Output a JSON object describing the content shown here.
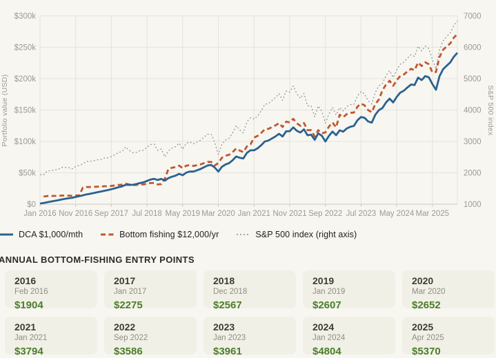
{
  "chart_data": {
    "type": "line",
    "title": "",
    "y_left": {
      "title": "Portfolio value (USD)",
      "min": 0,
      "max": 300000,
      "step": 50000,
      "tick_labels": [
        "$0",
        "$50k",
        "$100k",
        "$150k",
        "$200k",
        "$250k",
        "$300k"
      ]
    },
    "y_right": {
      "title": "S&P 500 index",
      "min": 1000,
      "max": 7000,
      "step": 1000,
      "tick_labels": [
        "1000",
        "2000",
        "3000",
        "4000",
        "5000",
        "6000",
        "7000"
      ]
    },
    "x_tick_labels": [
      "Jan 2016",
      "Nov 2016",
      "Sep 2017",
      "Jul 2018",
      "May 2019",
      "Mar 2020",
      "Jan 2021",
      "Nov 2021",
      "Sep 2022",
      "Jul 2023",
      "May 2024",
      "Mar 2025"
    ],
    "x_tick_interval_months": 10,
    "grid": true,
    "legend_position": "bottom-left",
    "series": [
      {
        "name": "DCA $1,000/mth",
        "axis": "left",
        "style": "solid",
        "color": "#2a618f",
        "values": [
          1000,
          1996,
          3128,
          4136,
          5200,
          6205,
          7427,
          8416,
          9405,
          10223,
          11574,
          12784,
          14013,
          15535,
          16529,
          17676,
          18883,
          19969,
          21357,
          22374,
          23800,
          25328,
          27046,
          28312,
          30900,
          30697,
          30871,
          31953,
          33640,
          34802,
          37057,
          39189,
          40351,
          38554,
          40236,
          37548,
          41498,
          43726,
          45511,
          48310,
          46128,
          50313,
          51963,
          52022,
          53928,
          56034,
          58933,
          61622,
          62527,
          58255,
          51978,
          59553,
          63252,
          65416,
          70024,
          75927,
          73955,
          72910,
          81758,
          85783,
          85823,
          89065,
          93851,
          99765,
          101313,
          104579,
          107939,
          112083,
          107755,
          116184,
          116225,
          122289,
          116874,
          114199,
          119273,
          109793,
          110793,
          102489,
          112831,
          109050,
          99876,
          108841,
          115688,
          109883,
          117665,
          115577,
          120623,
          123385,
          124710,
          133766,
          138944,
          137491,
          131782,
          129892,
          142476,
          149776,
          153162,
          162064,
          168088,
          162114,
          170872,
          177798,
          180817,
          185943,
          190696,
          189810,
          201690,
          197674,
          204017,
          202113,
          191471,
          182168,
          203820,
          214921,
          220563,
          225773,
          234741,
          241076
        ]
      },
      {
        "name": "Bottom fishing $12,000/yr",
        "axis": "left",
        "style": "dashed",
        "color": "#c2562c",
        "values": [
          null,
          12177,
          12983,
          13015,
          13216,
          13229,
          13702,
          13683,
          13664,
          13399,
          13859,
          14111,
          26385,
          27369,
          27357,
          27600,
          27924,
          28052,
          28596,
          28619,
          29163,
          29811,
          30657,
          30958,
          32694,
          31421,
          30576,
          30656,
          31316,
          31467,
          32601,
          33597,
          33736,
          31397,
          31953,
          40744,
          56392,
          58060,
          59103,
          61438,
          57393,
          61355,
          62148,
          61022,
          62085,
          63357,
          65505,
          67382,
          67278,
          61605,
          65607,
          73906,
          77256,
          78677,
          83017,
          88829,
          85352,
          82992,
          91926,
          95327,
          106008,
          108776,
          113400,
          119337,
          119993,
          122677,
          125445,
          129099,
          122962,
          131439,
          130355,
          136035,
          128899,
          124846,
          129298,
          117938,
          117938,
          108034,
          117881,
          112887,
          114354,
          123475,
          130108,
          122454,
          142363,
          138627,
          143481,
          145576,
          145960,
          155388,
          160241,
          157413,
          149731,
          146449,
          159508,
          166562,
          181320,
          190674,
          196586,
          188430,
          197447,
          204294,
          206614,
          211328,
          215594,
          213461,
          225696,
          220084,
          226033,
          222815,
          209981,
          210547,
          234417,
          246035,
          251348,
          256146,
          265187,
          271214
        ]
      },
      {
        "name": "S&P 500 index (right axis)",
        "axis": "right",
        "style": "dotted",
        "color": "#8f8f8c",
        "values": [
          1940,
          1932,
          2060,
          2065,
          2097,
          2099,
          2174,
          2171,
          2168,
          2126,
          2199,
          2239,
          2279,
          2364,
          2363,
          2384,
          2412,
          2423,
          2470,
          2472,
          2519,
          2575,
          2648,
          2674,
          2824,
          2714,
          2641,
          2648,
          2705,
          2718,
          2816,
          2902,
          2914,
          2712,
          2760,
          2507,
          2704,
          2784,
          2834,
          2946,
          2752,
          2942,
          2980,
          2926,
          2977,
          3038,
          3141,
          3231,
          3226,
          2954,
          2585,
          2912,
          3044,
          3100,
          3271,
          3500,
          3363,
          3270,
          3622,
          3756,
          3714,
          3811,
          3973,
          4181,
          4204,
          4298,
          4395,
          4523,
          4308,
          4605,
          4567,
          4766,
          4516,
          4374,
          4530,
          4132,
          4132,
          3785,
          4130,
          3955,
          3586,
          3872,
          4080,
          3840,
          4077,
          3970,
          4109,
          4169,
          4180,
          4450,
          4589,
          4508,
          4288,
          4194,
          4568,
          4770,
          4846,
          5096,
          5254,
          5036,
          5277,
          5460,
          5522,
          5648,
          5762,
          5705,
          6032,
          5882,
          6041,
          5955,
          5612,
          5310,
          5912,
          6205,
          6339,
          6460,
          6688,
          6840
        ]
      }
    ]
  },
  "entries": {
    "title": "ANNUAL BOTTOM-FISHING ENTRY POINTS",
    "cards": [
      {
        "year": "2016",
        "date": "Feb 2016",
        "price": "$1904"
      },
      {
        "year": "2017",
        "date": "Jan 2017",
        "price": "$2275"
      },
      {
        "year": "2018",
        "date": "Dec 2018",
        "price": "$2567"
      },
      {
        "year": "2019",
        "date": "Jan 2019",
        "price": "$2607"
      },
      {
        "year": "2020",
        "date": "Mar 2020",
        "price": "$2652"
      },
      {
        "year": "2021",
        "date": "Jan 2021",
        "price": "$3794"
      },
      {
        "year": "2022",
        "date": "Sep 2022",
        "price": "$3586"
      },
      {
        "year": "2023",
        "date": "Jan 2023",
        "price": "$3961"
      },
      {
        "year": "2024",
        "date": "Jan 2024",
        "price": "$4804"
      },
      {
        "year": "2025",
        "date": "Apr 2025",
        "price": "$5370"
      }
    ]
  },
  "colors": {
    "page_bg": "#f7f6f1",
    "card_bg": "#f1f0e7",
    "grid_line": "#e4e3dc",
    "axis_line": "#c9c8c1",
    "tick_text": "#9b9a94",
    "price_green": "#4c7e2b",
    "dca_blue": "#2a618f",
    "bottom_orange": "#c2562c",
    "sp500_gray": "#8f8f8c"
  }
}
